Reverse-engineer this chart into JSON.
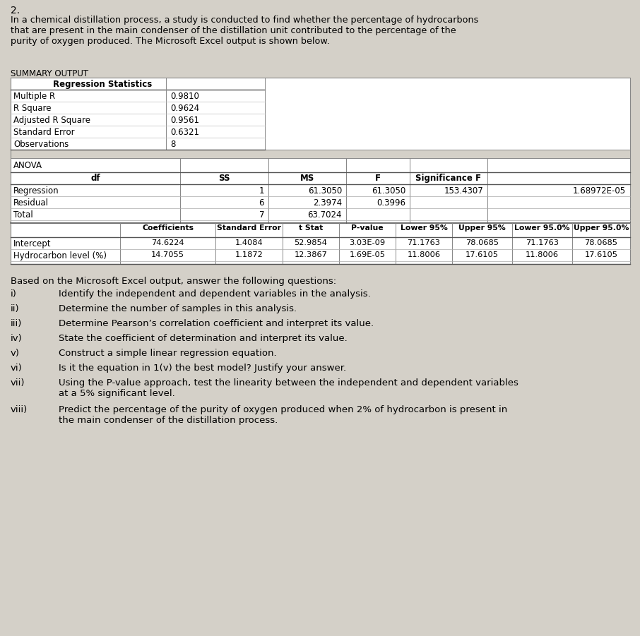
{
  "title_number": "2.",
  "intro_text": "In a chemical distillation process, a study is conducted to find whether the percentage of hydrocarbons\nthat are present in the main condenser of the distillation unit contributed to the percentage of the\npurity of oxygen produced. The Microsoft Excel output is shown below.",
  "summary_output_label": "SUMMARY OUTPUT",
  "regression_statistics_label": "Regression Statistics",
  "reg_stats_keys": [
    "Multiple R",
    "R Square",
    "Adjusted R Square",
    "Standard Error",
    "Observations"
  ],
  "reg_stats_vals": [
    "0.9810",
    "0.9624",
    "0.9561",
    "0.6321",
    "8"
  ],
  "anova_label": "ANOVA",
  "anova_headers": [
    "df",
    "SS",
    "MS",
    "F",
    "Significance F"
  ],
  "anova_rows": [
    [
      "Regression",
      "1",
      "61.3050",
      "61.3050",
      "153.4307",
      "1.68972E-05"
    ],
    [
      "Residual",
      "6",
      "2.3974",
      "0.3996",
      "",
      ""
    ],
    [
      "Total",
      "7",
      "63.7024",
      "",
      "",
      ""
    ]
  ],
  "coeff_headers": [
    "Coefficients",
    "Standard Error",
    "t Stat",
    "P-value",
    "Lower 95%",
    "Upper 95%",
    "Lower 95.0%",
    "Upper 95.0%"
  ],
  "coeff_rows": [
    [
      "Intercept",
      "74.6224",
      "1.4084",
      "52.9854",
      "3.03E-09",
      "71.1763",
      "78.0685",
      "71.1763",
      "78.0685"
    ],
    [
      "Hydrocarbon level (%)",
      "14.7055",
      "1.1872",
      "12.3867",
      "1.69E-05",
      "11.8006",
      "17.6105",
      "11.8006",
      "17.6105"
    ]
  ],
  "questions_intro": "Based on the Microsoft Excel output, answer the following questions:",
  "questions": [
    [
      "i)",
      "Identify the independent and dependent variables in the analysis."
    ],
    [
      "ii)",
      "Determine the number of samples in this analysis."
    ],
    [
      "iii)",
      "Determine Pearson’s correlation coefficient and interpret its value."
    ],
    [
      "iv)",
      "State the coefficient of determination and interpret its value."
    ],
    [
      "v)",
      "Construct a simple linear regression equation."
    ],
    [
      "vi)",
      "Is it the equation in 1(v) the best model? Justify your answer."
    ],
    [
      "vii)",
      "Using the P-value approach, test the linearity between the independent and dependent variables\nat a 5% significant level."
    ],
    [
      "viii)",
      "Predict the percentage of the purity of oxygen produced when 2% of hydrocarbon is present in\nthe main condenser of the distillation process."
    ]
  ],
  "bg_color": "#d4d0c8",
  "table_white": "#ffffff",
  "line_color": "#888888",
  "dark_line": "#555555",
  "text_color": "#000000"
}
